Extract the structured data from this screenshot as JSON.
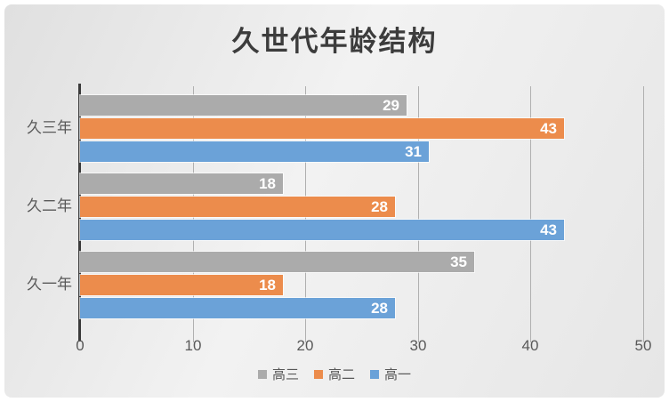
{
  "chart_data": {
    "type": "bar",
    "orientation": "horizontal",
    "title": "久世代年龄结构",
    "categories": [
      "久三年",
      "久二年",
      "久一年"
    ],
    "series": [
      {
        "name": "高三",
        "color": "#ababab",
        "values": [
          29,
          18,
          35
        ]
      },
      {
        "name": "高二",
        "color": "#ec8c4c",
        "values": [
          43,
          28,
          18
        ]
      },
      {
        "name": "高一",
        "color": "#6ba2d8",
        "values": [
          31,
          43,
          28
        ]
      }
    ],
    "xlim": [
      0,
      50
    ],
    "x_ticks": [
      "0",
      "10",
      "20",
      "30",
      "40",
      "50"
    ],
    "grid": true,
    "legend_position": "bottom",
    "data_labels_position": "inside-end",
    "data_label_color": "#ffffff",
    "axis_text_color": "#595959",
    "title_color": "#3c3c3c",
    "background": "#e9e9e9"
  }
}
